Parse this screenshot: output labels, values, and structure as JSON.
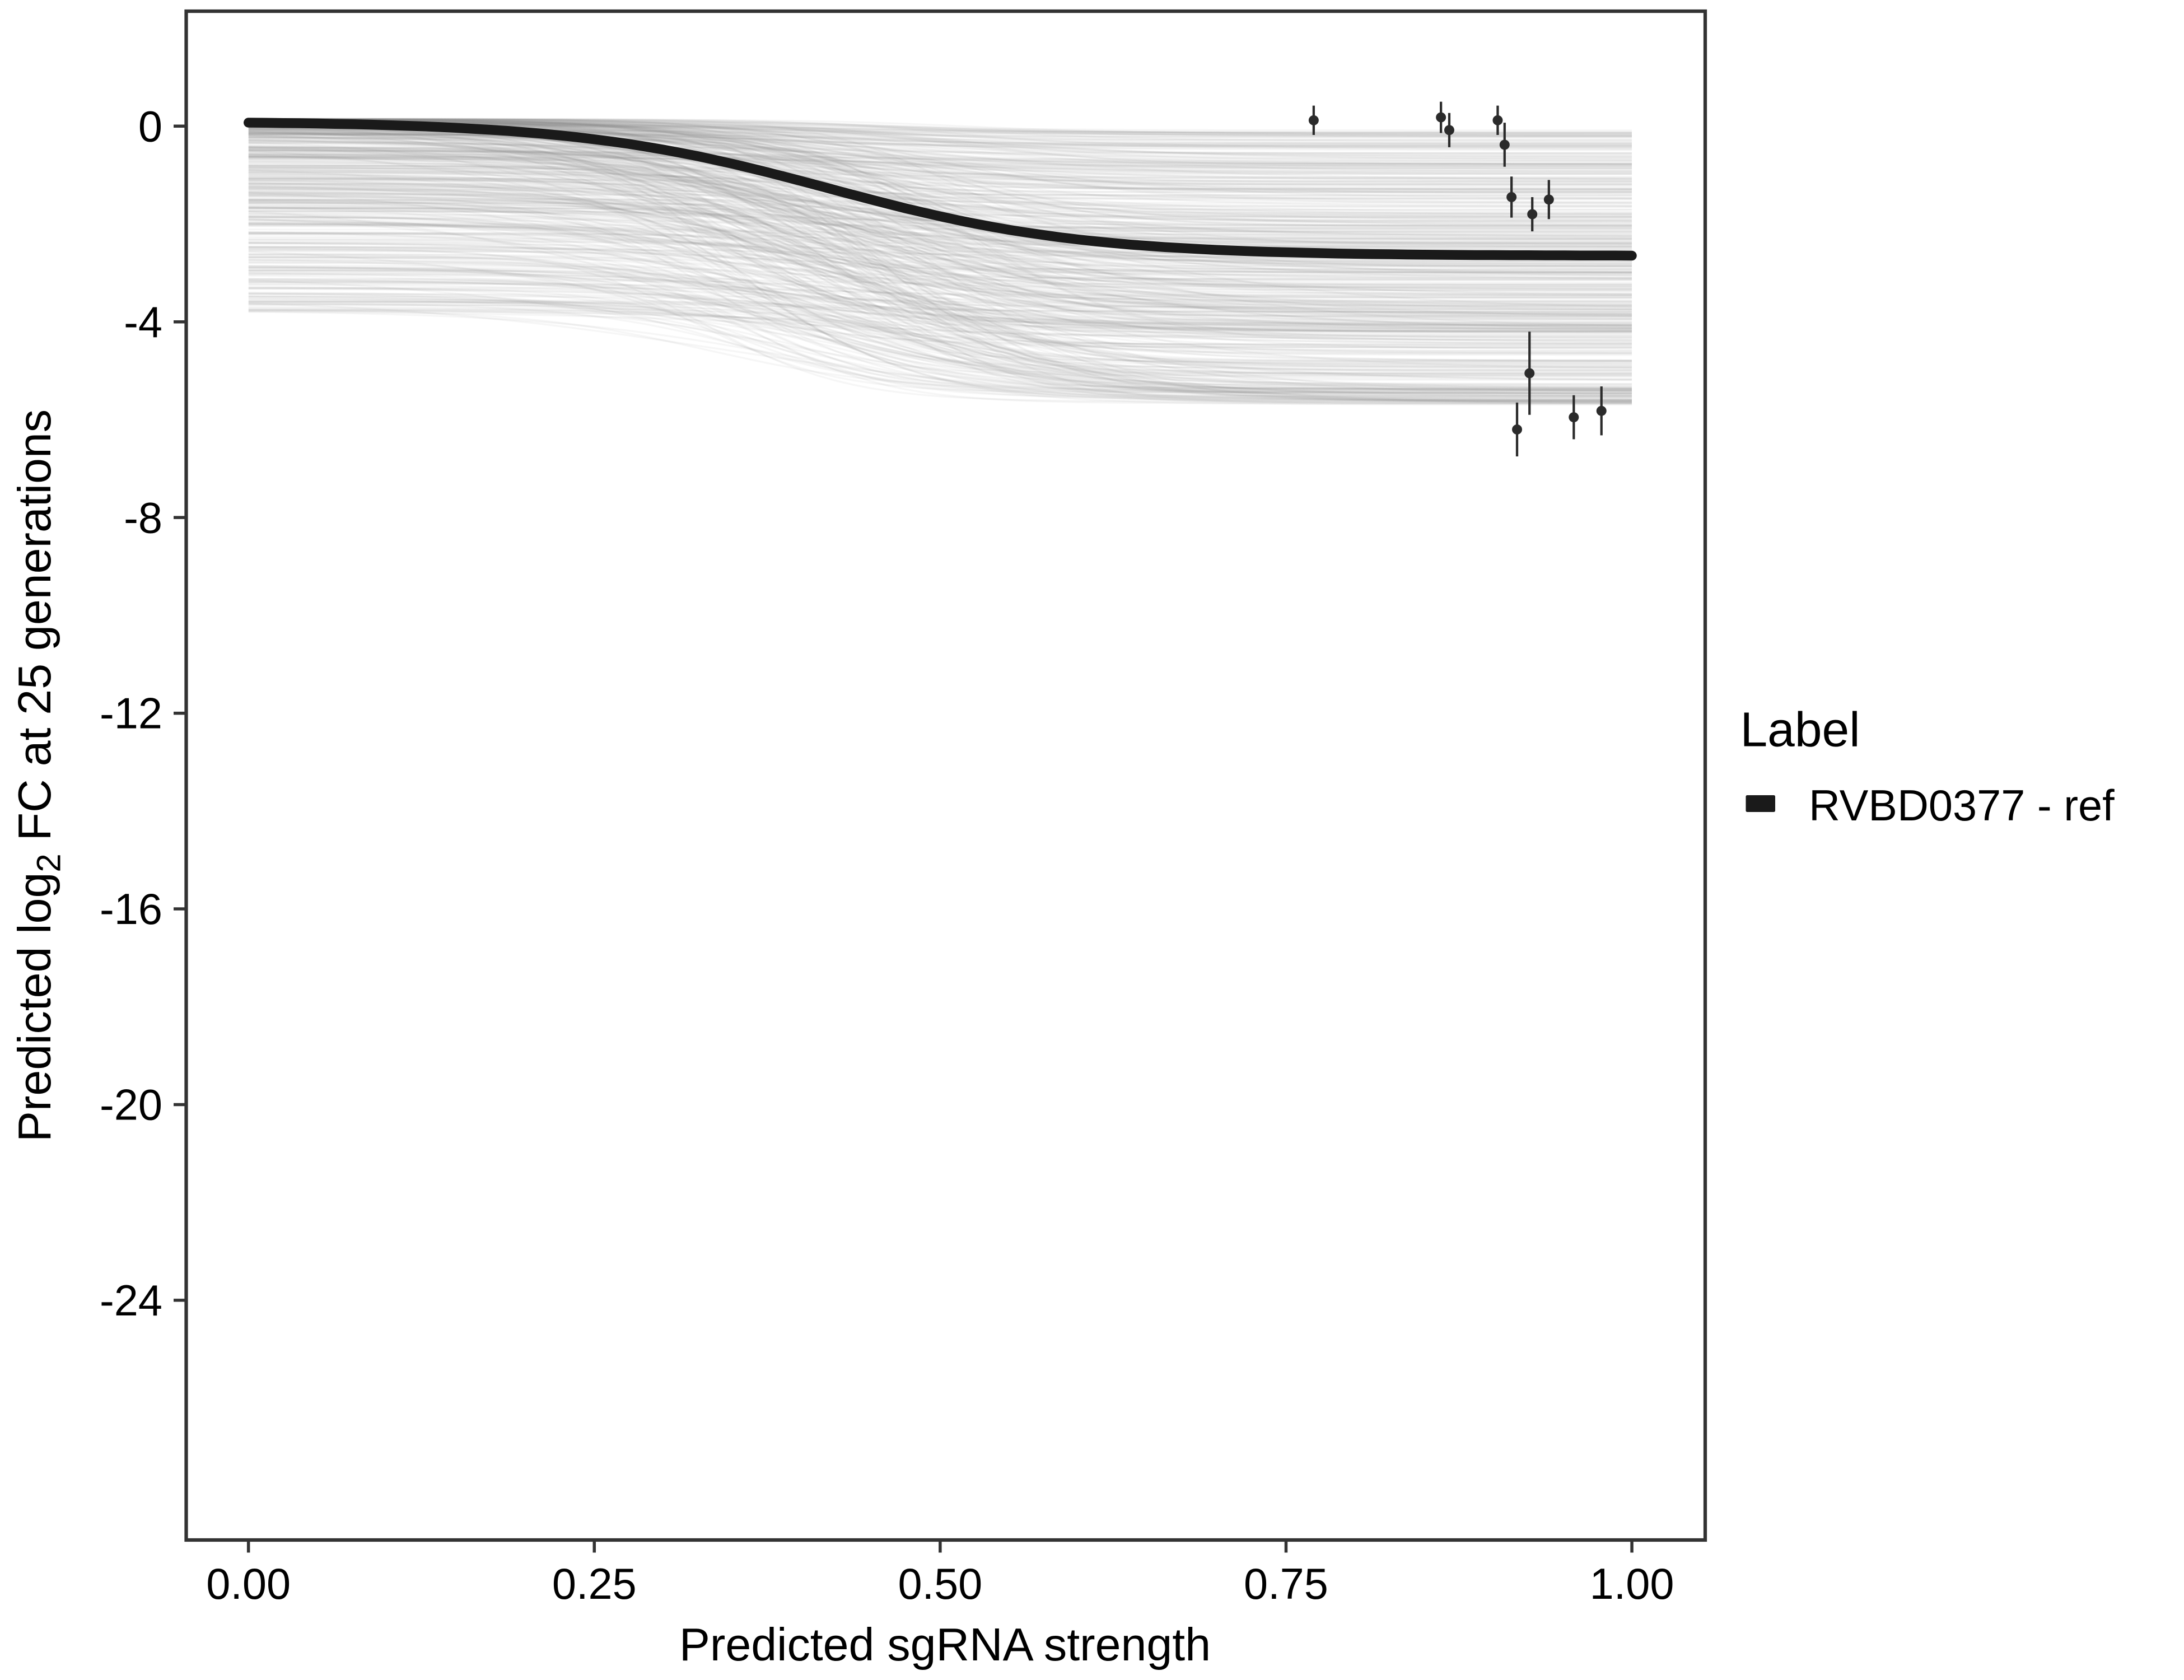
{
  "figure": {
    "background": "#ffffff"
  },
  "axes_style": {
    "panel_border_color": "#333333",
    "tick_color": "#333333",
    "text_color": "#000000",
    "tick_length": 9
  },
  "chart_data": {
    "type": "line",
    "title": "",
    "xlabel": "Predicted sgRNA strength",
    "ylabel": "Predicted log2 FC at 25 generations",
    "ylabel_parts": {
      "pre": "Predicted  log",
      "sub": "2",
      "post": " FC at 25 generations"
    },
    "x_ticks": [
      "0.00",
      "0.25",
      "0.50",
      "0.75",
      "1.00"
    ],
    "x_tick_values": [
      0,
      0.25,
      0.5,
      0.75,
      1
    ],
    "y_ticks": [
      "0",
      "-4",
      "-8",
      "-12",
      "-16",
      "-20",
      "-24"
    ],
    "y_tick_values": [
      0,
      -4,
      -8,
      -12,
      -16,
      -20,
      -24
    ],
    "xlim": [
      -0.045,
      1.053
    ],
    "ylim": [
      -28.9,
      2.35
    ],
    "grid": false,
    "legend": {
      "title": "Label",
      "position": "right",
      "entries": [
        {
          "label": "RVBD0377 - ref",
          "color": "#1a1a1a",
          "marker": "thick-line"
        }
      ]
    },
    "main_curve": {
      "name": "RVBD0377 - ref",
      "model": "sigmoid",
      "top": 0.1,
      "bottom": -2.65,
      "midpoint": 0.42,
      "steepness": 11,
      "color": "#1a1a1a",
      "width": 7
    },
    "ensemble": {
      "n": 520,
      "color": "#8a8a8a",
      "opacity": 0.075,
      "line_width": 1.3,
      "seed": 42,
      "top_range": [
        0.15,
        -3.8
      ],
      "drop_range": [
        0.2,
        5.2
      ],
      "midpoint_jitter": [
        0.33,
        0.52
      ],
      "steepness_range": [
        8,
        22
      ],
      "max_bottom": -5.7
    },
    "points": [
      {
        "x": 0.77,
        "y": 0.12,
        "err": 0.3
      },
      {
        "x": 0.862,
        "y": 0.18,
        "err": 0.32
      },
      {
        "x": 0.868,
        "y": -0.08,
        "err": 0.35
      },
      {
        "x": 0.903,
        "y": 0.12,
        "err": 0.3
      },
      {
        "x": 0.908,
        "y": -0.38,
        "err": 0.45
      },
      {
        "x": 0.913,
        "y": -1.45,
        "err": 0.42
      },
      {
        "x": 0.928,
        "y": -1.8,
        "err": 0.35
      },
      {
        "x": 0.94,
        "y": -1.5,
        "err": 0.4
      },
      {
        "x": 0.926,
        "y": -5.05,
        "err": 0.85
      },
      {
        "x": 0.917,
        "y": -6.2,
        "err": 0.55
      },
      {
        "x": 0.958,
        "y": -5.95,
        "err": 0.45
      },
      {
        "x": 0.978,
        "y": -5.82,
        "err": 0.5
      }
    ],
    "point_style": {
      "color": "#2b2b2b",
      "radius": 3.6,
      "errorbar_width": 1.7
    }
  }
}
